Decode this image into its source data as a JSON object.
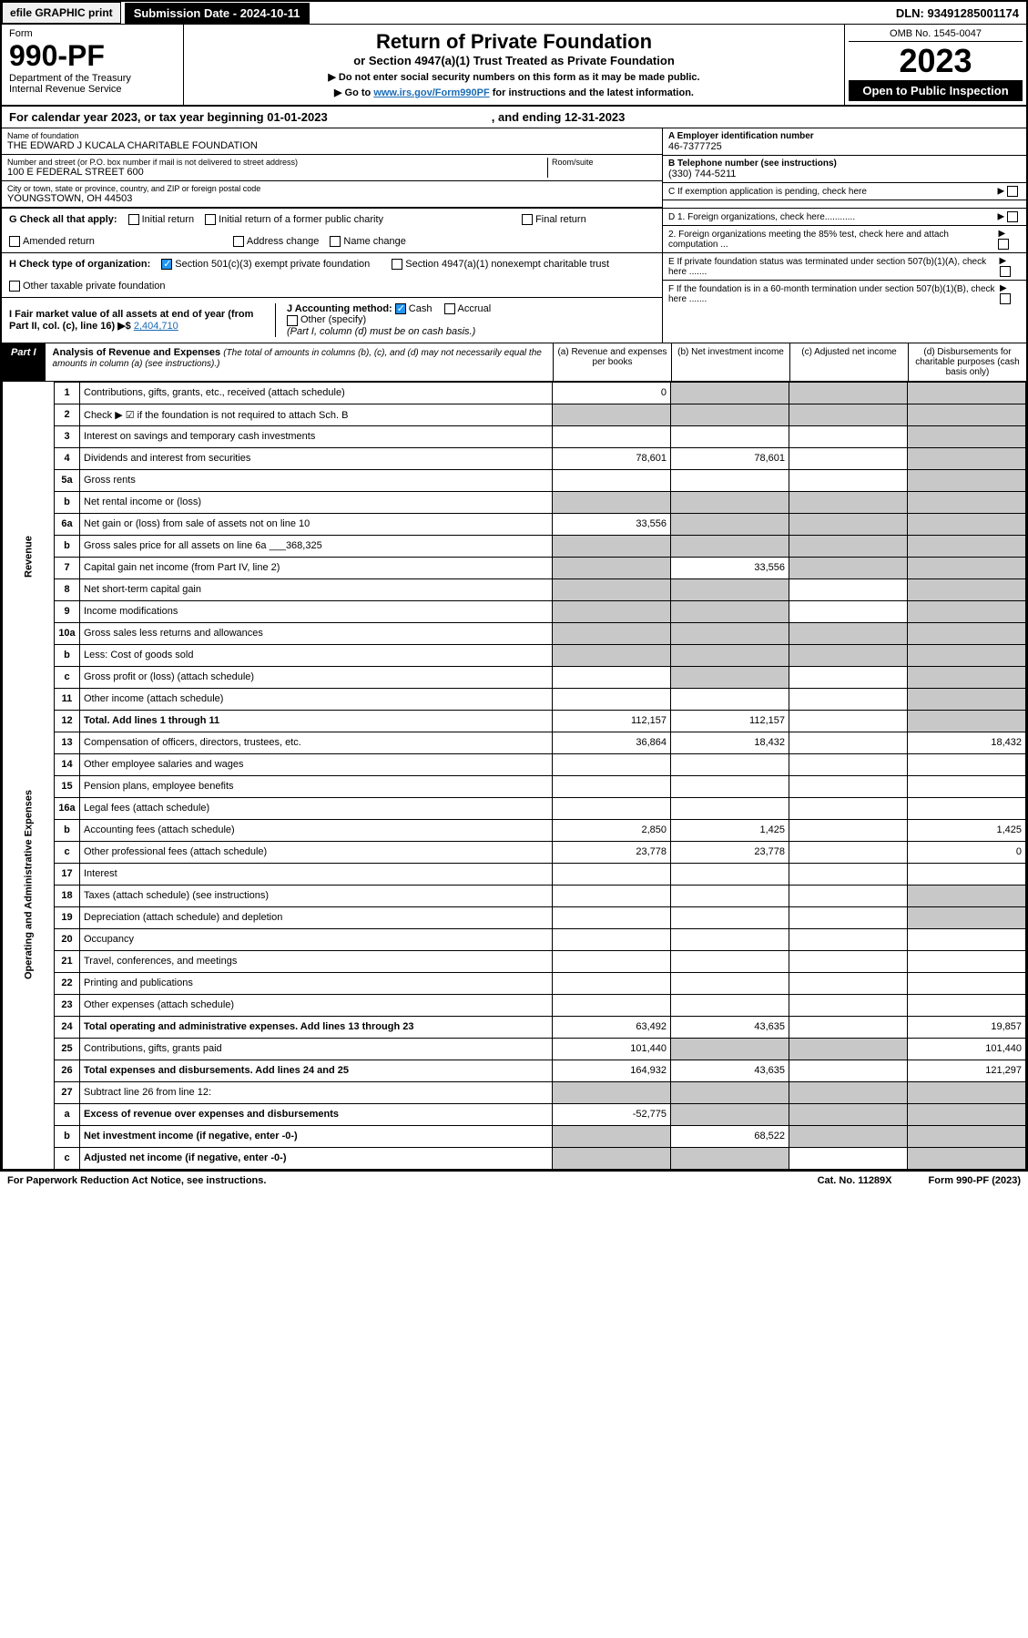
{
  "topbar": {
    "efile": "efile GRAPHIC print",
    "subdate_label": "Submission Date - 2024-10-11",
    "dln": "DLN: 93491285001174"
  },
  "header": {
    "form_word": "Form",
    "form_no": "990-PF",
    "dept": "Department of the Treasury",
    "irs": "Internal Revenue Service",
    "title": "Return of Private Foundation",
    "subtitle": "or Section 4947(a)(1) Trust Treated as Private Foundation",
    "note1": "▶ Do not enter social security numbers on this form as it may be made public.",
    "note2_pre": "▶ Go to ",
    "note2_link": "www.irs.gov/Form990PF",
    "note2_post": " for instructions and the latest information.",
    "omb": "OMB No. 1545-0047",
    "year": "2023",
    "open": "Open to Public Inspection"
  },
  "calyear": {
    "text": "For calendar year 2023, or tax year beginning 01-01-2023",
    "end": ", and ending 12-31-2023"
  },
  "foundation": {
    "name_label": "Name of foundation",
    "name": "THE EDWARD J KUCALA CHARITABLE FOUNDATION",
    "addr_label": "Number and street (or P.O. box number if mail is not delivered to street address)",
    "addr": "100 E FEDERAL STREET 600",
    "room_label": "Room/suite",
    "city_label": "City or town, state or province, country, and ZIP or foreign postal code",
    "city": "YOUNGSTOWN, OH  44503",
    "ein_label": "A Employer identification number",
    "ein": "46-7377725",
    "phone_label": "B Telephone number (see instructions)",
    "phone": "(330) 744-5211",
    "c_label": "C If exemption application is pending, check here",
    "d1": "D 1. Foreign organizations, check here............",
    "d2": "2. Foreign organizations meeting the 85% test, check here and attach computation ...",
    "e": "E  If private foundation status was terminated under section 507(b)(1)(A), check here .......",
    "f": "F  If the foundation is in a 60-month termination under section 507(b)(1)(B), check here .......",
    "g_label": "G Check all that apply:",
    "g_opts": [
      "Initial return",
      "Initial return of a former public charity",
      "Final return",
      "Amended return",
      "Address change",
      "Name change"
    ],
    "h_label": "H Check type of organization:",
    "h_opt1": "Section 501(c)(3) exempt private foundation",
    "h_opt2": "Section 4947(a)(1) nonexempt charitable trust",
    "h_opt3": "Other taxable private foundation",
    "i_label": "I Fair market value of all assets at end of year (from Part II, col. (c), line 16) ▶$",
    "i_val": "2,404,710",
    "j_label": "J Accounting method:",
    "j_cash": "Cash",
    "j_accrual": "Accrual",
    "j_other": "Other (specify)",
    "j_note": "(Part I, column (d) must be on cash basis.)"
  },
  "part1": {
    "label": "Part I",
    "title": "Analysis of Revenue and Expenses",
    "note": "(The total of amounts in columns (b), (c), and (d) may not necessarily equal the amounts in column (a) (see instructions).)",
    "col_a": "(a)   Revenue and expenses per books",
    "col_b": "(b)   Net investment income",
    "col_c": "(c)   Adjusted net income",
    "col_d": "(d)  Disbursements for charitable purposes (cash basis only)"
  },
  "sections": {
    "revenue": "Revenue",
    "opex": "Operating and Administrative Expenses"
  },
  "rows": [
    {
      "n": "1",
      "label": "Contributions, gifts, grants, etc., received (attach schedule)",
      "a": "0",
      "b": "",
      "c": "",
      "d": "",
      "shade_bcd": true
    },
    {
      "n": "2",
      "label": "Check ▶ ☑ if the foundation is not required to attach Sch. B",
      "all_shade": true
    },
    {
      "n": "3",
      "label": "Interest on savings and temporary cash investments",
      "a": "",
      "b": "",
      "c": "",
      "d": "",
      "shade_d": true
    },
    {
      "n": "4",
      "label": "Dividends and interest from securities",
      "a": "78,601",
      "b": "78,601",
      "c": "",
      "d": "",
      "shade_d": true
    },
    {
      "n": "5a",
      "label": "Gross rents",
      "a": "",
      "b": "",
      "c": "",
      "shade_d": true
    },
    {
      "n": "b",
      "label": "Net rental income or (loss)",
      "all_shade": true,
      "inline_box": true
    },
    {
      "n": "6a",
      "label": "Net gain or (loss) from sale of assets not on line 10",
      "a": "33,556",
      "shade_bcd": true
    },
    {
      "n": "b",
      "label": "Gross sales price for all assets on line 6a",
      "inline_val": "368,325",
      "all_shade": true
    },
    {
      "n": "7",
      "label": "Capital gain net income (from Part IV, line 2)",
      "shade_a": true,
      "b": "33,556",
      "shade_cd": true
    },
    {
      "n": "8",
      "label": "Net short-term capital gain",
      "shade_ab": true,
      "c": "",
      "shade_d": true
    },
    {
      "n": "9",
      "label": "Income modifications",
      "shade_ab": true,
      "c": "",
      "shade_d": true
    },
    {
      "n": "10a",
      "label": "Gross sales less returns and allowances",
      "all_shade": true,
      "inline_box": true
    },
    {
      "n": "b",
      "label": "Less: Cost of goods sold",
      "all_shade": true,
      "inline_box": true
    },
    {
      "n": "c",
      "label": "Gross profit or (loss) (attach schedule)",
      "a": "",
      "shade_b": true,
      "c": "",
      "shade_d": true
    },
    {
      "n": "11",
      "label": "Other income (attach schedule)",
      "a": "",
      "b": "",
      "c": "",
      "shade_d": true
    },
    {
      "n": "12",
      "label": "Total. Add lines 1 through 11",
      "bold": true,
      "a": "112,157",
      "b": "112,157",
      "c": "",
      "shade_d": true
    },
    {
      "n": "13",
      "label": "Compensation of officers, directors, trustees, etc.",
      "a": "36,864",
      "b": "18,432",
      "c": "",
      "d": "18,432"
    },
    {
      "n": "14",
      "label": "Other employee salaries and wages",
      "a": "",
      "b": "",
      "c": "",
      "d": ""
    },
    {
      "n": "15",
      "label": "Pension plans, employee benefits",
      "a": "",
      "b": "",
      "c": "",
      "d": ""
    },
    {
      "n": "16a",
      "label": "Legal fees (attach schedule)",
      "a": "",
      "b": "",
      "c": "",
      "d": ""
    },
    {
      "n": "b",
      "label": "Accounting fees (attach schedule)",
      "a": "2,850",
      "b": "1,425",
      "c": "",
      "d": "1,425"
    },
    {
      "n": "c",
      "label": "Other professional fees (attach schedule)",
      "a": "23,778",
      "b": "23,778",
      "c": "",
      "d": "0"
    },
    {
      "n": "17",
      "label": "Interest",
      "a": "",
      "b": "",
      "c": "",
      "d": ""
    },
    {
      "n": "18",
      "label": "Taxes (attach schedule) (see instructions)",
      "a": "",
      "b": "",
      "c": "",
      "shade_d": true
    },
    {
      "n": "19",
      "label": "Depreciation (attach schedule) and depletion",
      "a": "",
      "b": "",
      "c": "",
      "shade_d": true
    },
    {
      "n": "20",
      "label": "Occupancy",
      "a": "",
      "b": "",
      "c": "",
      "d": ""
    },
    {
      "n": "21",
      "label": "Travel, conferences, and meetings",
      "a": "",
      "b": "",
      "c": "",
      "d": ""
    },
    {
      "n": "22",
      "label": "Printing and publications",
      "a": "",
      "b": "",
      "c": "",
      "d": ""
    },
    {
      "n": "23",
      "label": "Other expenses (attach schedule)",
      "a": "",
      "b": "",
      "c": "",
      "d": ""
    },
    {
      "n": "24",
      "label": "Total operating and administrative expenses. Add lines 13 through 23",
      "bold": true,
      "a": "63,492",
      "b": "43,635",
      "c": "",
      "d": "19,857"
    },
    {
      "n": "25",
      "label": "Contributions, gifts, grants paid",
      "a": "101,440",
      "shade_bc": true,
      "d": "101,440"
    },
    {
      "n": "26",
      "label": "Total expenses and disbursements. Add lines 24 and 25",
      "bold": true,
      "a": "164,932",
      "b": "43,635",
      "c": "",
      "d": "121,297"
    },
    {
      "n": "27",
      "label": "Subtract line 26 from line 12:",
      "all_shade_vals": true
    },
    {
      "n": "a",
      "label": "Excess of revenue over expenses and disbursements",
      "bold": true,
      "a": "-52,775",
      "shade_bcd": true
    },
    {
      "n": "b",
      "label": "Net investment income (if negative, enter -0-)",
      "bold": true,
      "shade_a": true,
      "b": "68,522",
      "shade_cd": true
    },
    {
      "n": "c",
      "label": "Adjusted net income (if negative, enter -0-)",
      "bold": true,
      "shade_ab": true,
      "c": "",
      "shade_d": true
    }
  ],
  "footer": {
    "left": "For Paperwork Reduction Act Notice, see instructions.",
    "mid": "Cat. No. 11289X",
    "right": "Form 990-PF (2023)"
  }
}
